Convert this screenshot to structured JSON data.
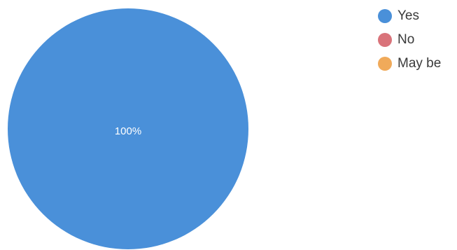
{
  "chart_data": {
    "type": "pie",
    "slices": [
      {
        "name": "Yes",
        "value": 100,
        "color": "#4a90d9"
      },
      {
        "name": "No",
        "value": 0,
        "color": "#d9737a"
      },
      {
        "name": "May be",
        "value": 0,
        "color": "#f0aa5a"
      }
    ],
    "slice_labels": [
      "100%"
    ],
    "legend_position": "top-right"
  }
}
